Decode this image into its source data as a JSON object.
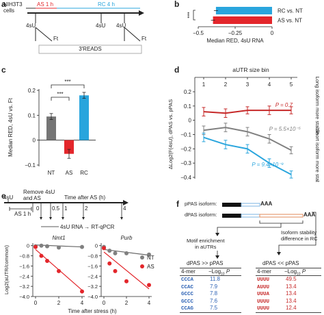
{
  "panels": {
    "a": {
      "label": "a",
      "cells": "NIH3T3\ncells",
      "as_label": "AS 1 h",
      "rc_label": "RC 4 h",
      "su_labels": [
        "4sU",
        "4sU",
        "4sU"
      ],
      "ft_labels": [
        "Ft",
        "Ft"
      ],
      "reads": "3′READS",
      "colors": {
        "as": "#e3262b",
        "rc": "#29a5dd"
      }
    },
    "b": {
      "label": "b",
      "xlabel": "Median RED, 4sU RNA",
      "signif": "***",
      "ticks": [
        "−0.5",
        "−0.25",
        "0"
      ],
      "xlim": [
        -0.5,
        0
      ],
      "bars": [
        {
          "name": "RC vs. NT",
          "value": -0.38,
          "color": "#29a5dd"
        },
        {
          "name": "AS vs. NT",
          "value": -0.4,
          "color": "#e3262b"
        }
      ]
    },
    "c": {
      "label": "c",
      "ylabel": "Median RED, 4sU vs. Ft",
      "signif": [
        "***",
        "***"
      ],
      "yticks": [
        "−0.1",
        "0",
        "0.1",
        "0.2"
      ],
      "ylim": [
        -0.1,
        0.2
      ],
      "bars": [
        {
          "name": "NT",
          "value": 0.095,
          "err": 0.012,
          "color": "#757575"
        },
        {
          "name": "AS",
          "value": -0.055,
          "err": 0.018,
          "color": "#e3262b"
        },
        {
          "name": "RC",
          "value": 0.18,
          "err": 0.012,
          "color": "#29a5dd"
        }
      ]
    },
    "d": {
      "label": "d",
      "title": "aUTR size bin",
      "ylabel": "ΔLog2(F(4sU), dPAS vs. pPAS",
      "xticks": [
        "1",
        "2",
        "3",
        "4",
        "5"
      ],
      "yticks": [
        "0.2",
        "0.1",
        "0",
        "−0.1",
        "−0.2",
        "−0.3",
        "−0.4"
      ],
      "ylim": [
        -0.4,
        0.2
      ],
      "right_top": "Long isoform\nmore stable",
      "right_bottom": "Short isoform more\nstable",
      "series": [
        {
          "name": "AS",
          "color": "#c62828",
          "values": [
            0.06,
            0.05,
            0.07,
            0.07,
            0.07
          ],
          "errs": [
            0.03,
            0.03,
            0.025,
            0.03,
            0.025
          ],
          "p_text": "P = 0.7"
        },
        {
          "name": "NT",
          "color": "#808080",
          "values": [
            -0.07,
            -0.05,
            -0.08,
            -0.13,
            -0.21
          ],
          "errs": [
            0.03,
            0.03,
            0.03,
            0.03,
            0.025
          ],
          "p_text": "P = 5.5×10⁻⁵"
        },
        {
          "name": "RC",
          "color": "#29a5dd",
          "values": [
            -0.12,
            -0.17,
            -0.2,
            -0.3,
            -0.38
          ],
          "errs": [
            0.03,
            0.03,
            0.03,
            0.03,
            0.025
          ],
          "p_text": "P = 9.4×10⁻⁹"
        }
      ]
    },
    "e": {
      "label": "e",
      "su1": "4sU",
      "remove": "Remove 4sU\nand AS",
      "time_label": "Time after AS (h)",
      "as_box": "AS 1 h",
      "times": [
        "0",
        "0.5",
        "1",
        "2",
        "4"
      ],
      "rna_label": "4sU RNA → RT-qPCR",
      "xlabel": "Time after stress (h)",
      "ylabel": "Log2(aUTR/common)",
      "yticks": [
        "0",
        "−0.8",
        "−1.6",
        "−2.4",
        "−3.2",
        "−4.0"
      ],
      "xticks": [
        "0",
        "2",
        "4"
      ],
      "legend": [
        {
          "name": "NT",
          "color": "#808080"
        },
        {
          "name": "AS",
          "color": "#e3262b"
        }
      ],
      "plots": [
        {
          "title": "Nmt1",
          "nt": [
            [
              0,
              -0.05
            ],
            [
              0.5,
              0.0
            ],
            [
              1,
              -0.05
            ],
            [
              2,
              -0.15
            ],
            [
              4,
              -0.1
            ]
          ],
          "as": [
            [
              0,
              -0.1
            ],
            [
              0.5,
              -0.8
            ],
            [
              1,
              -1.2
            ],
            [
              2,
              -2.0
            ],
            [
              4,
              -3.6
            ]
          ],
          "nt_line": [
            [
              0,
              0.05
            ],
            [
              4,
              -0.1
            ]
          ],
          "as_line": [
            [
              0,
              -0.3
            ],
            [
              4,
              -3.5
            ]
          ]
        },
        {
          "title": "Purb",
          "nt": [
            [
              0,
              -0.1
            ],
            [
              0.5,
              -0.4
            ],
            [
              1,
              -0.6
            ],
            [
              2,
              -0.6
            ],
            [
              4,
              -0.7
            ]
          ],
          "as": [
            [
              0,
              -0.2
            ],
            [
              0.5,
              -1.4
            ],
            [
              1,
              -2.0
            ],
            [
              2,
              -2.8
            ],
            [
              4,
              -3.1
            ]
          ],
          "nt_line": [
            [
              0,
              -0.3
            ],
            [
              4,
              -0.75
            ]
          ],
          "as_line": [
            [
              0,
              -0.5
            ],
            [
              4,
              -3.4
            ]
          ]
        }
      ]
    },
    "f": {
      "label": "f",
      "ppas": "pPAS isoform:",
      "dpas": "dPAS isoform:",
      "aaa": "AAA",
      "motif": "Motif enrichment\nin aUTRs",
      "isoform": "Isoform stability\ndifference in RC",
      "tables": [
        {
          "title": "dPAS >> pPAS",
          "h1": "4-mer",
          "h2": "−Log",
          "h2sub": "10",
          "h2p": "P",
          "color": "#2e63b5",
          "rows": [
            [
              "CCCA",
              "11.8"
            ],
            [
              "CCAC",
              "7.9"
            ],
            [
              "GCCC",
              "7.8"
            ],
            [
              "GCCC",
              "7.6"
            ],
            [
              "CCAG",
              "7.5"
            ]
          ]
        },
        {
          "title": "dPAS << pPAS",
          "h1": "4-mer",
          "h2": "−Log",
          "h2sub": "10",
          "h2p": "P",
          "color": "#c62828",
          "rows": [
            [
              "UUUU",
              "49.5"
            ],
            [
              "AUUU",
              "13.4"
            ],
            [
              "UUUA",
              "13.4"
            ],
            [
              "UUUU",
              "13.4"
            ],
            [
              "UUUU",
              "12.4"
            ]
          ]
        }
      ]
    }
  }
}
